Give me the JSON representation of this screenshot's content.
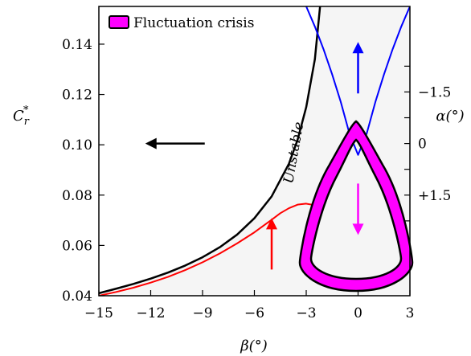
{
  "chart_data": {
    "type": "line",
    "x_axis": {
      "label": "β(°)",
      "range": [
        -15,
        3
      ],
      "ticks": [
        -15,
        -12,
        -9,
        -6,
        -3,
        0,
        3
      ],
      "tick_labels": [
        "−15",
        "−12",
        "−9",
        "−6",
        "−3",
        "0",
        "3"
      ]
    },
    "y_axis_left": {
      "label": "C*r",
      "range": [
        0.04,
        0.155
      ],
      "ticks": [
        0.04,
        0.06,
        0.08,
        0.1,
        0.12,
        0.14
      ],
      "tick_labels": [
        "0.04",
        "0.06",
        "0.08",
        "0.10",
        "0.12",
        "0.14"
      ]
    },
    "y_axis_right": {
      "label": "α(°)",
      "tick_labels": [
        "−1.5",
        "0",
        "+1.5"
      ],
      "tick_values_alpha": [
        -1.5,
        0,
        1.5
      ]
    },
    "legend": {
      "position": "top-left",
      "entries": [
        {
          "label": "Fluctuation crisis",
          "color": "#ff00ff"
        }
      ]
    },
    "annotation": "Unstable",
    "colors": {
      "stability_boundary": "#000000",
      "red_curve": "#ff0000",
      "blue_curve": "#0000ff",
      "fluctuation_band": "#ff00ff",
      "unstable_fill": "#f5f5f5"
    },
    "series": [
      {
        "color": "#000000",
        "x": [
          -15,
          -14,
          -13,
          -12,
          -11,
          -10,
          -9,
          -8,
          -7,
          -6,
          -5,
          -4,
          -3.5,
          -3,
          -2.5,
          -2.2
        ],
        "y": [
          0.041,
          0.0428,
          0.0447,
          0.0468,
          0.0492,
          0.052,
          0.0553,
          0.0593,
          0.0643,
          0.0708,
          0.0795,
          0.0925,
          0.102,
          0.115,
          0.134,
          0.155
        ]
      },
      {
        "color": "#ff0000",
        "x": [
          -15,
          -14,
          -13,
          -12,
          -11,
          -10,
          -9,
          -8,
          -7,
          -6,
          -5,
          -4.5,
          -4,
          -3.5,
          -3,
          -2.5,
          -2
        ],
        "y": [
          0.04,
          0.0415,
          0.0432,
          0.0452,
          0.0475,
          0.0502,
          0.0533,
          0.0568,
          0.0608,
          0.0652,
          0.0702,
          0.0728,
          0.0748,
          0.0762,
          0.0766,
          0.076,
          0.0745
        ]
      },
      {
        "color": "#0000ff",
        "x": [
          -3,
          -2.5,
          -2,
          -1.5,
          -1,
          -0.5,
          0,
          0.5,
          1,
          1.5,
          2,
          2.5,
          3
        ],
        "y": [
          0.155,
          0.147,
          0.138,
          0.128,
          0.117,
          0.1045,
          0.096,
          0.1045,
          0.117,
          0.128,
          0.138,
          0.147,
          0.155
        ]
      }
    ],
    "arrows": [
      {
        "color": "#000000",
        "direction": "left",
        "x": -10.5,
        "y": 0.1005
      },
      {
        "color": "#0000ff",
        "direction": "up",
        "x": 0,
        "y": 0.13
      },
      {
        "color": "#ff00ff",
        "direction": "down",
        "x": 0,
        "y": 0.075
      },
      {
        "color": "#ff0000",
        "direction": "up",
        "x": -5,
        "y": 0.06
      }
    ]
  }
}
